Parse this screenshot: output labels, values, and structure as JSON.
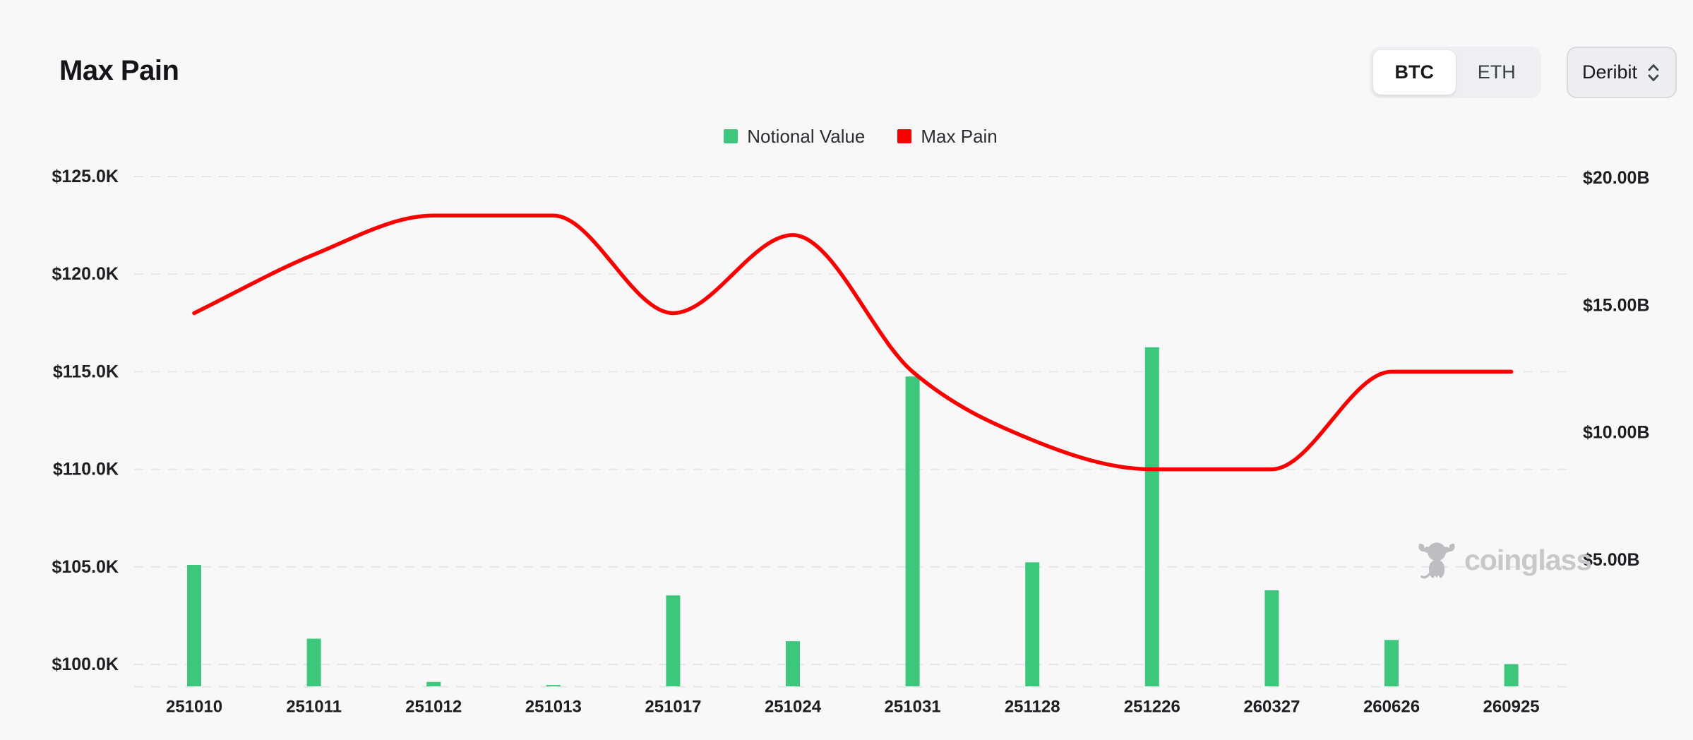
{
  "header": {
    "title": "Max Pain",
    "asset_toggle": {
      "options": [
        "BTC",
        "ETH"
      ],
      "selected": "BTC"
    },
    "exchange_select": {
      "value": "Deribit"
    }
  },
  "legend": [
    {
      "label": "Notional Value",
      "color": "#3cc87c"
    },
    {
      "label": "Max Pain",
      "color": "#fa0000"
    }
  ],
  "watermark": {
    "text": "coinglass"
  },
  "colors": {
    "background": "#f8f8f9",
    "grid": "#e4e5e8",
    "axis_text": "#1d1e21",
    "bar_green": "#3cc87c",
    "line_red": "#fa0000"
  },
  "chart_data": {
    "type": "bar",
    "title": "Max Pain",
    "categories": [
      "251010",
      "251011",
      "251012",
      "251013",
      "251017",
      "251024",
      "251031",
      "251128",
      "251226",
      "260327",
      "260626",
      "260925"
    ],
    "series": [
      {
        "name": "Notional Value",
        "type": "bar",
        "yaxis": "right",
        "unit": "USD billions",
        "color": "#3cc87c",
        "values": [
          4.8,
          1.9,
          0.2,
          0.08,
          3.6,
          1.8,
          12.2,
          4.9,
          13.35,
          3.8,
          1.85,
          0.9
        ]
      },
      {
        "name": "Max Pain",
        "type": "line",
        "yaxis": "left",
        "unit": "USD thousands",
        "color": "#fa0000",
        "values": [
          118,
          121,
          123,
          123,
          118,
          122,
          115,
          111.5,
          110,
          110,
          115,
          115
        ]
      }
    ],
    "left_axis": {
      "tick_labels": [
        "$125.0K",
        "$120.0K",
        "$115.0K",
        "$110.0K",
        "$105.0K",
        "$100.0K"
      ],
      "tick_values": [
        125,
        120,
        115,
        110,
        105,
        100
      ],
      "min": 98.8,
      "max": 125
    },
    "right_axis": {
      "tick_labels": [
        "$20.00B",
        "$15.00B",
        "$10.00B",
        "$5.00B"
      ],
      "tick_values": [
        20,
        15,
        10,
        5
      ],
      "min": 0,
      "max": 20
    },
    "grid": "horizontal-dashed",
    "legend_position": "top-center"
  }
}
